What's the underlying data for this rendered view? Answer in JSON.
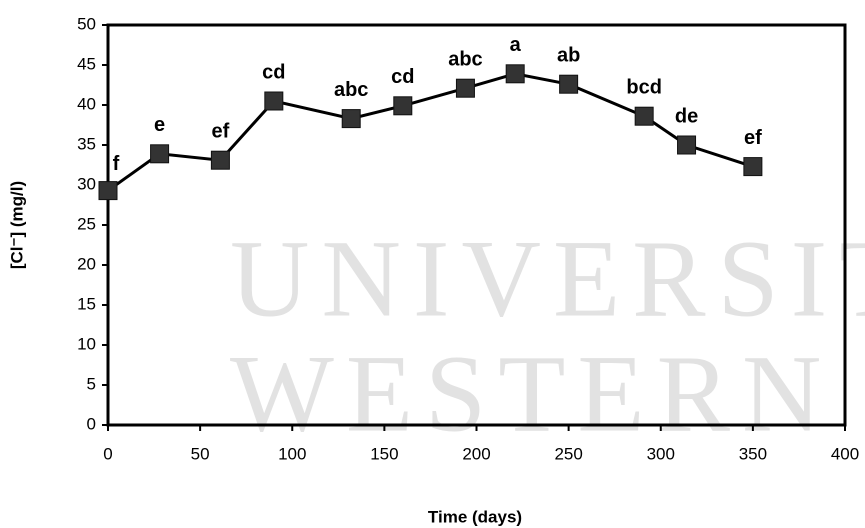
{
  "chart_data": {
    "type": "line",
    "x_label": "Time (days)",
    "y_label": "[Cl⁻] (mg/l)",
    "watermark": [
      "UNIVERSITY of",
      "WESTERN CA"
    ],
    "x": [
      0,
      28,
      61,
      90,
      132,
      160,
      194,
      221,
      250,
      291,
      314,
      350
    ],
    "series": [
      {
        "values": [
          29.3,
          33.9,
          33.1,
          40.5,
          38.3,
          39.9,
          42.1,
          43.9,
          42.6,
          38.6,
          35.0,
          32.3
        ],
        "point_labels": [
          "f",
          "e",
          "ef",
          "cd",
          "abc",
          "cd",
          "abc",
          "a",
          "ab",
          "bcd",
          "de",
          "ef"
        ],
        "color": "#000000",
        "marker_color": "#333333"
      }
    ],
    "xlim": [
      0,
      400
    ],
    "xticks": [
      0,
      50,
      100,
      150,
      200,
      250,
      300,
      350,
      400
    ],
    "ylim": [
      0,
      50
    ],
    "yticks": [
      0,
      5,
      10,
      15,
      20,
      25,
      30,
      35,
      40,
      45,
      50
    ]
  }
}
